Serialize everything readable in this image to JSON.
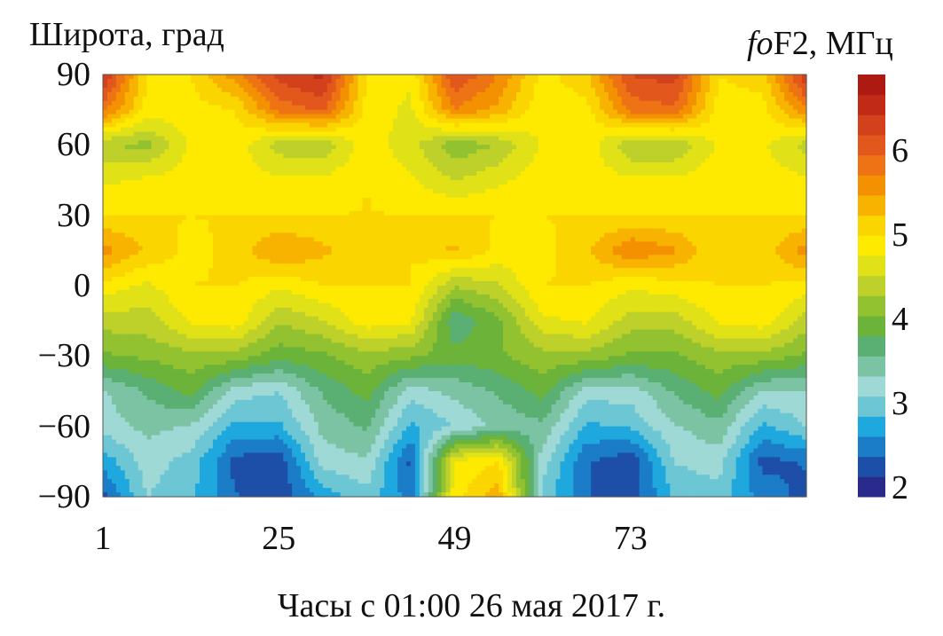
{
  "chart_data": {
    "type": "heatmap",
    "xlabel": "Часы с 01:00 26 мая 2017 г.",
    "ylabel": "Широта, град",
    "colorbar_label": {
      "italic": "fo",
      "rest": "F2, МГц"
    },
    "xlim": [
      1,
      97
    ],
    "ylim": [
      -90,
      90
    ],
    "x_ticks": [
      "1",
      "25",
      "49",
      "73"
    ],
    "y_ticks": [
      "90",
      "60",
      "30",
      "0",
      "−30",
      "−60",
      "−90"
    ],
    "colorbar_ticks": [
      "6",
      "5",
      "4",
      "3",
      "2"
    ],
    "colorbar_range": [
      1.9,
      6.9
    ],
    "hours": [
      1,
      7,
      13,
      19,
      25,
      31,
      37,
      43,
      49,
      55,
      61,
      67,
      73,
      79,
      85,
      91,
      97
    ],
    "latitudes": [
      90,
      75,
      60,
      45,
      30,
      15,
      0,
      -15,
      -30,
      -45,
      -60,
      -75,
      -90
    ],
    "values": [
      [
        6.5,
        5.0,
        5.0,
        5.6,
        6.3,
        6.5,
        5.0,
        4.8,
        6.2,
        5.7,
        4.9,
        5.2,
        6.2,
        6.3,
        5.0,
        5.1,
        6.4
      ],
      [
        5.8,
        4.9,
        4.9,
        5.0,
        5.8,
        6.0,
        4.9,
        4.7,
        5.7,
        5.4,
        4.8,
        4.9,
        5.8,
        5.9,
        4.9,
        4.9,
        5.7
      ],
      [
        4.3,
        4.2,
        4.8,
        4.9,
        4.4,
        4.3,
        4.9,
        4.6,
        4.1,
        4.3,
        4.8,
        4.9,
        4.3,
        4.3,
        4.8,
        4.8,
        4.4
      ],
      [
        4.7,
        4.8,
        4.9,
        4.9,
        4.8,
        4.8,
        5.0,
        4.8,
        4.5,
        4.7,
        4.9,
        4.9,
        4.8,
        4.8,
        4.9,
        4.9,
        4.8
      ],
      [
        5.0,
        5.0,
        5.0,
        5.0,
        5.0,
        5.0,
        5.0,
        5.0,
        5.0,
        5.0,
        5.0,
        5.0,
        5.0,
        5.0,
        5.0,
        5.0,
        5.0
      ],
      [
        5.6,
        5.2,
        4.9,
        5.1,
        5.5,
        5.3,
        5.0,
        5.0,
        5.3,
        4.9,
        4.9,
        5.2,
        5.7,
        5.5,
        5.0,
        5.1,
        5.6
      ],
      [
        4.9,
        4.7,
        5.0,
        5.0,
        4.8,
        5.0,
        5.0,
        5.0,
        4.3,
        4.5,
        5.0,
        5.0,
        4.8,
        4.9,
        5.0,
        5.0,
        4.9
      ],
      [
        4.4,
        4.4,
        4.8,
        4.9,
        4.3,
        4.5,
        4.9,
        4.8,
        3.6,
        4.0,
        4.7,
        4.8,
        4.4,
        4.4,
        4.8,
        4.9,
        4.4
      ],
      [
        4.0,
        4.1,
        4.2,
        4.2,
        3.9,
        4.0,
        4.2,
        4.1,
        3.9,
        4.0,
        4.2,
        4.2,
        4.0,
        4.0,
        4.2,
        4.2,
        4.0
      ],
      [
        3.3,
        3.6,
        3.9,
        3.2,
        3.1,
        3.6,
        3.9,
        3.2,
        3.4,
        3.6,
        3.9,
        3.2,
        3.2,
        3.6,
        3.9,
        3.3,
        3.3
      ],
      [
        3.2,
        3.4,
        3.3,
        2.8,
        2.8,
        3.4,
        3.6,
        2.8,
        3.1,
        3.4,
        3.5,
        2.8,
        2.9,
        3.3,
        3.5,
        2.8,
        3.1
      ],
      [
        2.7,
        3.2,
        3.0,
        2.3,
        2.2,
        3.2,
        3.3,
        2.3,
        4.8,
        5.0,
        3.2,
        2.4,
        2.2,
        3.1,
        3.2,
        2.3,
        2.4
      ],
      [
        2.3,
        3.1,
        2.9,
        2.4,
        2.2,
        2.7,
        3.0,
        2.5,
        4.9,
        5.4,
        3.0,
        2.4,
        2.2,
        2.9,
        3.0,
        2.5,
        2.3
      ]
    ]
  },
  "colormap": [
    "#2a2a8c",
    "#1d4fa8",
    "#1b7cc8",
    "#1ea8de",
    "#6cc6d4",
    "#9ed9d6",
    "#7cc3a4",
    "#5aaf72",
    "#6cb33a",
    "#93c231",
    "#bed12a",
    "#e1e118",
    "#fdea00",
    "#fbd500",
    "#f8b200",
    "#f39100",
    "#ed7314",
    "#e2571c",
    "#d3401c",
    "#c22a18",
    "#ac1a12"
  ]
}
